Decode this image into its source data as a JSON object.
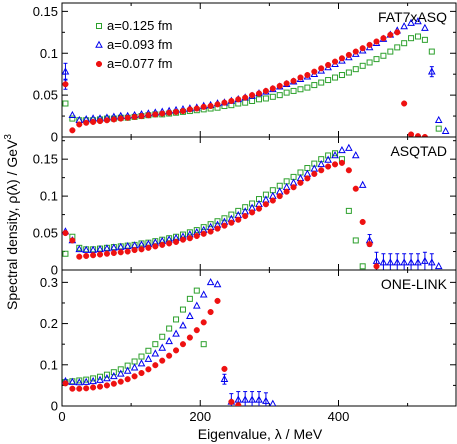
{
  "figure": {
    "xlabel": "Eigenvalue, λ / MeV",
    "ylabel": "Spectral density, ρ(λ) / GeV",
    "ylabel_sup": "3",
    "xlim": [
      0,
      570
    ],
    "xticks": [
      "0",
      "200",
      "400"
    ],
    "xtick_values": [
      0,
      200,
      400
    ],
    "colors": {
      "a0125": "#2ca02c",
      "a0093": "#0000ee",
      "a0077": "#ee1111",
      "errbar": "#0000ee"
    }
  },
  "legend": {
    "placement": "top-left of top panel",
    "entries": [
      {
        "label": "a=0.125 fm",
        "marker": "open-square",
        "color": "#2ca02c"
      },
      {
        "label": "a=0.093 fm",
        "marker": "open-triangle",
        "color": "#0000ee"
      },
      {
        "label": "a=0.077 fm",
        "marker": "filled-circle",
        "color": "#ee1111"
      }
    ]
  },
  "chart_data": [
    {
      "type": "scatter",
      "panel_label": "FAT7xASQ",
      "ylim": [
        0,
        0.16
      ],
      "yticks": [
        "0",
        "0.05",
        "0.1",
        "0.15"
      ],
      "ytick_values": [
        0,
        0.05,
        0.1,
        0.15
      ],
      "series": [
        {
          "name": "a=0.125 fm",
          "x": [
            5,
            15,
            25,
            35,
            45,
            55,
            65,
            75,
            85,
            95,
            105,
            115,
            125,
            135,
            145,
            155,
            165,
            175,
            185,
            195,
            205,
            215,
            225,
            235,
            245,
            255,
            265,
            275,
            285,
            295,
            305,
            315,
            325,
            335,
            345,
            355,
            365,
            375,
            385,
            395,
            405,
            415,
            425,
            435,
            445,
            455,
            465,
            475,
            485,
            495,
            505,
            515,
            525,
            535,
            545
          ],
          "y": [
            0.04,
            0.022,
            0.02,
            0.02,
            0.02,
            0.021,
            0.022,
            0.022,
            0.023,
            0.023,
            0.024,
            0.025,
            0.026,
            0.027,
            0.027,
            0.028,
            0.029,
            0.03,
            0.031,
            0.032,
            0.033,
            0.034,
            0.035,
            0.037,
            0.038,
            0.04,
            0.041,
            0.043,
            0.045,
            0.046,
            0.048,
            0.05,
            0.053,
            0.055,
            0.057,
            0.059,
            0.062,
            0.065,
            0.068,
            0.071,
            0.074,
            0.077,
            0.081,
            0.085,
            0.089,
            0.093,
            0.097,
            0.102,
            0.107,
            0.112,
            0.118,
            0.12,
            0.116,
            0.102,
            0.01
          ]
        },
        {
          "name": "a=0.093 fm",
          "x": [
            5,
            15,
            25,
            35,
            45,
            55,
            65,
            75,
            85,
            95,
            105,
            115,
            125,
            135,
            145,
            155,
            165,
            175,
            185,
            195,
            205,
            215,
            225,
            235,
            245,
            255,
            265,
            275,
            285,
            295,
            305,
            315,
            325,
            335,
            345,
            355,
            365,
            375,
            385,
            395,
            405,
            415,
            425,
            435,
            445,
            455,
            465,
            475,
            485,
            495,
            505,
            515,
            525,
            535,
            545,
            555
          ],
          "y": [
            0.078,
            0.026,
            0.02,
            0.021,
            0.022,
            0.022,
            0.023,
            0.024,
            0.025,
            0.025,
            0.026,
            0.027,
            0.028,
            0.029,
            0.03,
            0.031,
            0.032,
            0.033,
            0.034,
            0.035,
            0.037,
            0.038,
            0.04,
            0.041,
            0.043,
            0.045,
            0.047,
            0.049,
            0.052,
            0.054,
            0.057,
            0.06,
            0.063,
            0.066,
            0.069,
            0.072,
            0.075,
            0.079,
            0.083,
            0.087,
            0.091,
            0.095,
            0.099,
            0.103,
            0.107,
            0.112,
            0.117,
            0.122,
            0.127,
            0.132,
            0.136,
            0.138,
            0.13,
            0.078,
            0.02,
            0.007
          ]
        },
        {
          "name": "a=0.077 fm",
          "x": [
            5,
            15,
            25,
            35,
            45,
            55,
            65,
            75,
            85,
            95,
            105,
            115,
            125,
            135,
            145,
            155,
            165,
            175,
            185,
            195,
            205,
            215,
            225,
            235,
            245,
            255,
            265,
            275,
            285,
            295,
            305,
            315,
            325,
            335,
            345,
            355,
            365,
            375,
            385,
            395,
            405,
            415,
            425,
            435,
            445,
            455,
            465,
            475,
            485,
            495,
            505,
            515,
            525
          ],
          "y": [
            0.063,
            0.008,
            0.015,
            0.017,
            0.018,
            0.019,
            0.02,
            0.021,
            0.022,
            0.023,
            0.024,
            0.025,
            0.026,
            0.027,
            0.028,
            0.029,
            0.03,
            0.031,
            0.033,
            0.034,
            0.036,
            0.037,
            0.039,
            0.041,
            0.043,
            0.045,
            0.047,
            0.05,
            0.052,
            0.055,
            0.058,
            0.061,
            0.064,
            0.067,
            0.071,
            0.074,
            0.078,
            0.082,
            0.086,
            0.09,
            0.094,
            0.098,
            0.102,
            0.106,
            0.11,
            0.114,
            0.118,
            0.122,
            0.125,
            0.04,
            0.003,
            0.001,
            0.0
          ]
        }
      ],
      "errorbars": [
        {
          "x": 5,
          "y": 0.078,
          "err": 0.01
        },
        {
          "x": 5,
          "y": 0.063,
          "err": 0.006
        },
        {
          "x": 535,
          "y": 0.078,
          "err": 0.006
        }
      ]
    },
    {
      "type": "scatter",
      "panel_label": "ASQTAD",
      "ylim": [
        0,
        0.18
      ],
      "yticks": [
        "0",
        "0.05",
        "0.1",
        "0.15"
      ],
      "ytick_values": [
        0,
        0.05,
        0.1,
        0.15
      ],
      "series": [
        {
          "name": "a=0.125 fm",
          "x": [
            5,
            15,
            25,
            35,
            45,
            55,
            65,
            75,
            85,
            95,
            105,
            115,
            125,
            135,
            145,
            155,
            165,
            175,
            185,
            195,
            205,
            215,
            225,
            235,
            245,
            255,
            265,
            275,
            285,
            295,
            305,
            315,
            325,
            335,
            345,
            355,
            365,
            375,
            385,
            395,
            405,
            415,
            425,
            435
          ],
          "y": [
            0.022,
            0.045,
            0.03,
            0.028,
            0.028,
            0.029,
            0.03,
            0.031,
            0.032,
            0.033,
            0.034,
            0.036,
            0.037,
            0.039,
            0.041,
            0.043,
            0.045,
            0.048,
            0.051,
            0.054,
            0.058,
            0.062,
            0.066,
            0.07,
            0.075,
            0.08,
            0.085,
            0.09,
            0.096,
            0.102,
            0.108,
            0.114,
            0.12,
            0.126,
            0.132,
            0.138,
            0.144,
            0.15,
            0.155,
            0.158,
            0.15,
            0.08,
            0.04,
            0.005
          ]
        },
        {
          "name": "a=0.093 fm",
          "x": [
            5,
            15,
            25,
            35,
            45,
            55,
            65,
            75,
            85,
            95,
            105,
            115,
            125,
            135,
            145,
            155,
            165,
            175,
            185,
            195,
            205,
            215,
            225,
            235,
            245,
            255,
            265,
            275,
            285,
            295,
            305,
            315,
            325,
            335,
            345,
            355,
            365,
            375,
            385,
            395,
            405,
            415,
            425,
            435,
            445,
            455,
            465,
            475,
            485,
            495,
            505,
            515,
            525,
            535,
            545
          ],
          "y": [
            0.052,
            0.04,
            0.028,
            0.027,
            0.027,
            0.028,
            0.029,
            0.03,
            0.031,
            0.032,
            0.033,
            0.034,
            0.035,
            0.037,
            0.039,
            0.041,
            0.043,
            0.045,
            0.048,
            0.051,
            0.054,
            0.058,
            0.061,
            0.065,
            0.069,
            0.074,
            0.079,
            0.084,
            0.089,
            0.095,
            0.1,
            0.106,
            0.112,
            0.118,
            0.124,
            0.13,
            0.137,
            0.143,
            0.149,
            0.155,
            0.162,
            0.165,
            0.155,
            0.115,
            0.04,
            0.012,
            0.01,
            0.01,
            0.01,
            0.01,
            0.01,
            0.01,
            0.012,
            0.01,
            0.005
          ]
        },
        {
          "name": "a=0.077 fm",
          "x": [
            5,
            15,
            25,
            35,
            45,
            55,
            65,
            75,
            85,
            95,
            105,
            115,
            125,
            135,
            145,
            155,
            165,
            175,
            185,
            195,
            205,
            215,
            225,
            235,
            245,
            255,
            265,
            275,
            285,
            295,
            305,
            315,
            325,
            335,
            345,
            355,
            365,
            375,
            385,
            395,
            405,
            415,
            425,
            435,
            445,
            455
          ],
          "y": [
            0.05,
            0.04,
            0.018,
            0.019,
            0.02,
            0.021,
            0.022,
            0.023,
            0.024,
            0.025,
            0.027,
            0.028,
            0.03,
            0.032,
            0.034,
            0.036,
            0.038,
            0.041,
            0.043,
            0.046,
            0.049,
            0.052,
            0.056,
            0.06,
            0.064,
            0.068,
            0.073,
            0.078,
            0.083,
            0.089,
            0.094,
            0.1,
            0.106,
            0.112,
            0.118,
            0.124,
            0.13,
            0.135,
            0.14,
            0.143,
            0.145,
            0.135,
            0.11,
            0.065,
            0.035,
            0.005
          ]
        }
      ],
      "errorbars": [
        {
          "x": 445,
          "y": 0.04,
          "err": 0.008
        },
        {
          "x": 455,
          "y": 0.012,
          "err": 0.012
        },
        {
          "x": 465,
          "y": 0.01,
          "err": 0.012
        },
        {
          "x": 475,
          "y": 0.01,
          "err": 0.012
        },
        {
          "x": 485,
          "y": 0.01,
          "err": 0.012
        },
        {
          "x": 495,
          "y": 0.01,
          "err": 0.012
        },
        {
          "x": 505,
          "y": 0.01,
          "err": 0.012
        },
        {
          "x": 515,
          "y": 0.01,
          "err": 0.012
        },
        {
          "x": 525,
          "y": 0.012,
          "err": 0.012
        },
        {
          "x": 535,
          "y": 0.01,
          "err": 0.012
        }
      ]
    },
    {
      "type": "scatter",
      "panel_label": "ONE-LINK",
      "ylim": [
        0,
        0.33
      ],
      "yticks": [
        "0",
        "0.1",
        "0.2",
        "0.3"
      ],
      "ytick_values": [
        0,
        0.1,
        0.2,
        0.3
      ],
      "series": [
        {
          "name": "a=0.125 fm",
          "x": [
            5,
            15,
            25,
            35,
            45,
            55,
            65,
            75,
            85,
            95,
            105,
            115,
            125,
            135,
            145,
            155,
            165,
            175,
            185,
            195,
            205
          ],
          "y": [
            0.058,
            0.06,
            0.062,
            0.064,
            0.067,
            0.071,
            0.076,
            0.082,
            0.089,
            0.098,
            0.108,
            0.12,
            0.134,
            0.15,
            0.168,
            0.188,
            0.21,
            0.234,
            0.26,
            0.28,
            0.15
          ]
        },
        {
          "name": "a=0.093 fm",
          "x": [
            5,
            15,
            25,
            35,
            45,
            55,
            65,
            75,
            85,
            95,
            105,
            115,
            125,
            135,
            145,
            155,
            165,
            175,
            185,
            195,
            205,
            215,
            225,
            235,
            245,
            255,
            265,
            275,
            285,
            295,
            305
          ],
          "y": [
            0.06,
            0.058,
            0.057,
            0.058,
            0.06,
            0.063,
            0.067,
            0.072,
            0.078,
            0.085,
            0.093,
            0.103,
            0.114,
            0.127,
            0.141,
            0.157,
            0.175,
            0.195,
            0.218,
            0.243,
            0.27,
            0.3,
            0.295,
            0.065,
            0.01,
            0.015,
            0.015,
            0.015,
            0.015,
            0.012,
            0.005
          ]
        },
        {
          "name": "a=0.077 fm",
          "x": [
            5,
            15,
            25,
            35,
            45,
            55,
            65,
            75,
            85,
            95,
            105,
            115,
            125,
            135,
            145,
            155,
            165,
            175,
            185,
            195,
            205,
            215,
            225,
            235,
            245,
            255
          ],
          "y": [
            0.055,
            0.042,
            0.042,
            0.043,
            0.045,
            0.047,
            0.05,
            0.054,
            0.059,
            0.065,
            0.072,
            0.08,
            0.089,
            0.099,
            0.11,
            0.122,
            0.135,
            0.15,
            0.166,
            0.184,
            0.203,
            0.228,
            0.255,
            0.09,
            0.01,
            0.002
          ]
        }
      ],
      "errorbars": [
        {
          "x": 235,
          "y": 0.065,
          "err": 0.012
        },
        {
          "x": 245,
          "y": 0.01,
          "err": 0.02
        },
        {
          "x": 255,
          "y": 0.015,
          "err": 0.02
        },
        {
          "x": 265,
          "y": 0.015,
          "err": 0.02
        },
        {
          "x": 275,
          "y": 0.015,
          "err": 0.02
        },
        {
          "x": 285,
          "y": 0.015,
          "err": 0.02
        },
        {
          "x": 295,
          "y": 0.012,
          "err": 0.02
        }
      ]
    }
  ]
}
